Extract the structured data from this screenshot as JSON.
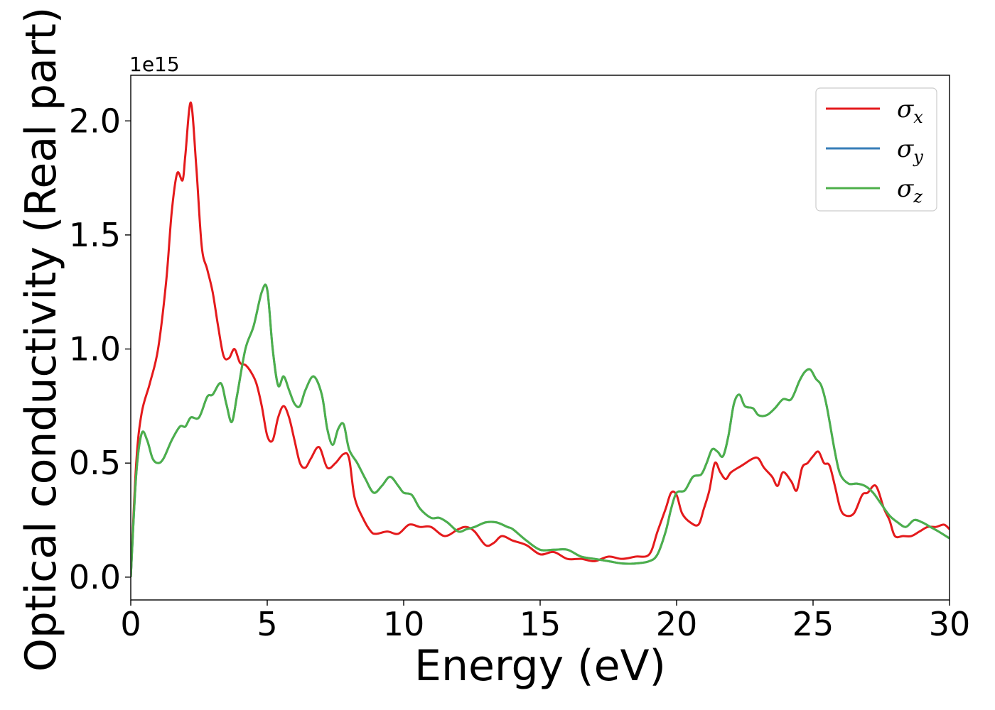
{
  "chart_data": {
    "type": "line",
    "title": "",
    "xlabel": "Energy (eV)",
    "ylabel": "Optical conductivity (Real part)",
    "y_offset_label": "1e15",
    "xlim": [
      0,
      30
    ],
    "ylim": [
      -0.1,
      2.2
    ],
    "xticks": [
      0,
      5,
      10,
      15,
      20,
      25,
      30
    ],
    "xtick_labels": [
      "0",
      "5",
      "10",
      "15",
      "20",
      "25",
      "30"
    ],
    "yticks": [
      0.0,
      0.5,
      1.0,
      1.5,
      2.0
    ],
    "ytick_labels": [
      "0.0",
      "0.5",
      "1.0",
      "1.5",
      "2.0"
    ],
    "grid": false,
    "legend_position": "top-right",
    "series": [
      {
        "name": "σx",
        "symbol": "σ",
        "sub": "x",
        "color": "#e41a1c",
        "x": [
          0,
          0.2,
          0.4,
          0.7,
          1.0,
          1.3,
          1.5,
          1.7,
          1.9,
          2.0,
          2.2,
          2.4,
          2.6,
          2.8,
          3.0,
          3.2,
          3.4,
          3.6,
          3.8,
          4.0,
          4.2,
          4.4,
          4.6,
          4.8,
          5.0,
          5.2,
          5.4,
          5.6,
          5.8,
          6.0,
          6.2,
          6.4,
          6.6,
          6.9,
          7.2,
          7.5,
          7.8,
          8.0,
          8.2,
          8.5,
          8.8,
          9.0,
          9.4,
          9.8,
          10.2,
          10.6,
          11.0,
          11.5,
          12.0,
          12.3,
          12.6,
          13.0,
          13.3,
          13.6,
          14.0,
          14.5,
          15.0,
          15.5,
          16.0,
          16.5,
          17.0,
          17.5,
          18.0,
          18.5,
          19.0,
          19.3,
          19.6,
          19.8,
          20.0,
          20.2,
          20.5,
          20.8,
          21.0,
          21.2,
          21.4,
          21.6,
          21.8,
          22.0,
          22.4,
          22.8,
          23.0,
          23.2,
          23.5,
          23.7,
          23.9,
          24.2,
          24.4,
          24.6,
          24.8,
          25.0,
          25.2,
          25.4,
          25.6,
          25.8,
          26.0,
          26.2,
          26.5,
          26.8,
          27.0,
          27.3,
          27.6,
          27.8,
          28.0,
          28.3,
          28.6,
          28.9,
          29.2,
          29.5,
          29.8,
          30.0
        ],
        "y": [
          0.0,
          0.5,
          0.72,
          0.85,
          1.0,
          1.3,
          1.6,
          1.77,
          1.74,
          1.85,
          2.08,
          1.8,
          1.45,
          1.35,
          1.25,
          1.1,
          0.97,
          0.96,
          1.0,
          0.94,
          0.93,
          0.9,
          0.85,
          0.75,
          0.62,
          0.6,
          0.7,
          0.75,
          0.7,
          0.6,
          0.5,
          0.48,
          0.52,
          0.57,
          0.48,
          0.5,
          0.54,
          0.52,
          0.35,
          0.26,
          0.2,
          0.19,
          0.2,
          0.19,
          0.23,
          0.22,
          0.22,
          0.18,
          0.21,
          0.22,
          0.2,
          0.14,
          0.15,
          0.18,
          0.16,
          0.14,
          0.1,
          0.11,
          0.08,
          0.08,
          0.07,
          0.09,
          0.08,
          0.09,
          0.1,
          0.2,
          0.3,
          0.37,
          0.36,
          0.28,
          0.24,
          0.23,
          0.3,
          0.38,
          0.5,
          0.46,
          0.43,
          0.46,
          0.49,
          0.52,
          0.52,
          0.48,
          0.44,
          0.4,
          0.46,
          0.42,
          0.38,
          0.48,
          0.5,
          0.53,
          0.55,
          0.5,
          0.49,
          0.4,
          0.3,
          0.27,
          0.28,
          0.36,
          0.37,
          0.4,
          0.3,
          0.25,
          0.18,
          0.18,
          0.18,
          0.2,
          0.22,
          0.22,
          0.23,
          0.21
        ]
      },
      {
        "name": "σy",
        "symbol": "σ",
        "sub": "y",
        "color": "#377eb8",
        "x": [
          0,
          0.2,
          0.4,
          0.6,
          0.8,
          1.0,
          1.2,
          1.5,
          1.8,
          2.0,
          2.2,
          2.5,
          2.8,
          3.0,
          3.3,
          3.5,
          3.7,
          3.9,
          4.2,
          4.5,
          4.8,
          5.0,
          5.2,
          5.4,
          5.6,
          5.8,
          6.0,
          6.2,
          6.4,
          6.7,
          7.0,
          7.2,
          7.4,
          7.6,
          7.8,
          8.0,
          8.3,
          8.6,
          8.9,
          9.2,
          9.5,
          9.8,
          10.0,
          10.3,
          10.6,
          11.0,
          11.3,
          11.6,
          12.0,
          12.3,
          12.6,
          13.0,
          13.4,
          13.8,
          14.0,
          14.5,
          15.0,
          15.5,
          16.0,
          16.5,
          17.0,
          17.5,
          18.0,
          18.5,
          19.0,
          19.3,
          19.6,
          19.8,
          20.0,
          20.3,
          20.6,
          20.9,
          21.1,
          21.3,
          21.5,
          21.7,
          21.9,
          22.1,
          22.3,
          22.5,
          22.8,
          23.0,
          23.3,
          23.6,
          23.9,
          24.2,
          24.5,
          24.7,
          24.9,
          25.1,
          25.3,
          25.5,
          25.8,
          26.0,
          26.3,
          26.6,
          26.9,
          27.2,
          27.5,
          27.8,
          28.1,
          28.4,
          28.7,
          29.0,
          29.3,
          29.6,
          30.0
        ],
        "y": [
          0.0,
          0.45,
          0.63,
          0.6,
          0.52,
          0.5,
          0.52,
          0.6,
          0.66,
          0.66,
          0.7,
          0.7,
          0.79,
          0.8,
          0.85,
          0.76,
          0.68,
          0.8,
          1.0,
          1.1,
          1.25,
          1.26,
          1.0,
          0.84,
          0.88,
          0.82,
          0.76,
          0.75,
          0.82,
          0.88,
          0.8,
          0.65,
          0.58,
          0.65,
          0.67,
          0.56,
          0.5,
          0.43,
          0.37,
          0.4,
          0.44,
          0.4,
          0.37,
          0.36,
          0.3,
          0.26,
          0.26,
          0.24,
          0.2,
          0.21,
          0.22,
          0.24,
          0.24,
          0.22,
          0.21,
          0.16,
          0.12,
          0.12,
          0.12,
          0.09,
          0.08,
          0.07,
          0.06,
          0.06,
          0.07,
          0.1,
          0.2,
          0.3,
          0.37,
          0.38,
          0.44,
          0.45,
          0.5,
          0.56,
          0.55,
          0.53,
          0.62,
          0.76,
          0.8,
          0.75,
          0.74,
          0.71,
          0.71,
          0.74,
          0.78,
          0.78,
          0.86,
          0.9,
          0.91,
          0.87,
          0.84,
          0.75,
          0.55,
          0.45,
          0.41,
          0.41,
          0.4,
          0.37,
          0.32,
          0.27,
          0.24,
          0.22,
          0.25,
          0.24,
          0.22,
          0.2,
          0.17
        ]
      },
      {
        "name": "σz",
        "symbol": "σ",
        "sub": "z",
        "color": "#4daf4a",
        "x": [
          0,
          0.2,
          0.4,
          0.6,
          0.8,
          1.0,
          1.2,
          1.5,
          1.8,
          2.0,
          2.2,
          2.5,
          2.8,
          3.0,
          3.3,
          3.5,
          3.7,
          3.9,
          4.2,
          4.5,
          4.8,
          5.0,
          5.2,
          5.4,
          5.6,
          5.8,
          6.0,
          6.2,
          6.4,
          6.7,
          7.0,
          7.2,
          7.4,
          7.6,
          7.8,
          8.0,
          8.3,
          8.6,
          8.9,
          9.2,
          9.5,
          9.8,
          10.0,
          10.3,
          10.6,
          11.0,
          11.3,
          11.6,
          12.0,
          12.3,
          12.6,
          13.0,
          13.4,
          13.8,
          14.0,
          14.5,
          15.0,
          15.5,
          16.0,
          16.5,
          17.0,
          17.5,
          18.0,
          18.5,
          19.0,
          19.3,
          19.6,
          19.8,
          20.0,
          20.3,
          20.6,
          20.9,
          21.1,
          21.3,
          21.5,
          21.7,
          21.9,
          22.1,
          22.3,
          22.5,
          22.8,
          23.0,
          23.3,
          23.6,
          23.9,
          24.2,
          24.5,
          24.7,
          24.9,
          25.1,
          25.3,
          25.5,
          25.8,
          26.0,
          26.3,
          26.6,
          26.9,
          27.2,
          27.5,
          27.8,
          28.1,
          28.4,
          28.7,
          29.0,
          29.3,
          29.6,
          30.0
        ],
        "y": [
          0.0,
          0.45,
          0.63,
          0.6,
          0.52,
          0.5,
          0.52,
          0.6,
          0.66,
          0.66,
          0.7,
          0.7,
          0.79,
          0.8,
          0.85,
          0.76,
          0.68,
          0.8,
          1.0,
          1.1,
          1.25,
          1.26,
          1.0,
          0.84,
          0.88,
          0.82,
          0.76,
          0.75,
          0.82,
          0.88,
          0.8,
          0.65,
          0.58,
          0.65,
          0.67,
          0.56,
          0.5,
          0.43,
          0.37,
          0.4,
          0.44,
          0.4,
          0.37,
          0.36,
          0.3,
          0.26,
          0.26,
          0.24,
          0.2,
          0.21,
          0.22,
          0.24,
          0.24,
          0.22,
          0.21,
          0.16,
          0.12,
          0.12,
          0.12,
          0.09,
          0.08,
          0.07,
          0.06,
          0.06,
          0.07,
          0.1,
          0.2,
          0.3,
          0.37,
          0.38,
          0.44,
          0.45,
          0.5,
          0.56,
          0.55,
          0.53,
          0.62,
          0.76,
          0.8,
          0.75,
          0.74,
          0.71,
          0.71,
          0.74,
          0.78,
          0.78,
          0.86,
          0.9,
          0.91,
          0.87,
          0.84,
          0.75,
          0.55,
          0.45,
          0.41,
          0.41,
          0.4,
          0.37,
          0.32,
          0.27,
          0.24,
          0.22,
          0.25,
          0.24,
          0.22,
          0.2,
          0.17
        ]
      }
    ]
  }
}
